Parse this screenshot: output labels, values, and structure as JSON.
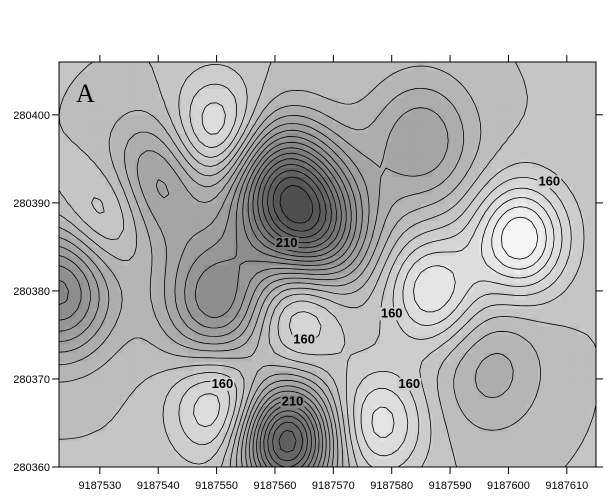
{
  "chart_data": {
    "type": "contour",
    "panel_label": "A",
    "title": "",
    "xlabel": "",
    "ylabel": "",
    "xlim": [
      9187523,
      9187615
    ],
    "ylim": [
      280360,
      280406
    ],
    "x_ticks": [
      9187530,
      9187540,
      9187550,
      9187560,
      9187570,
      9187580,
      9187590,
      9187600,
      9187610
    ],
    "y_ticks": [
      280360,
      280370,
      280380,
      280390,
      280400
    ],
    "grid": false,
    "fill": "grayscale, darker = higher value",
    "contour_labels": [
      {
        "text": "160",
        "x": 9187607,
        "y": 280392
      },
      {
        "text": "210",
        "x": 9187562,
        "y": 280385
      },
      {
        "text": "160",
        "x": 9187580,
        "y": 280377
      },
      {
        "text": "160",
        "x": 9187565,
        "y": 280374
      },
      {
        "text": "160",
        "x": 9187551,
        "y": 280369
      },
      {
        "text": "210",
        "x": 9187563,
        "y": 280367
      },
      {
        "text": "160",
        "x": 9187583,
        "y": 280369
      }
    ],
    "features": [
      {
        "kind": "high",
        "x": 9187561,
        "y": 280392,
        "amp": 1.0
      },
      {
        "kind": "high",
        "x": 9187567,
        "y": 280387,
        "amp": 0.9
      },
      {
        "kind": "high",
        "x": 9187539,
        "y": 280392,
        "amp": 0.55
      },
      {
        "kind": "high",
        "x": 9187550,
        "y": 280379,
        "amp": 0.7
      },
      {
        "kind": "high",
        "x": 9187523,
        "y": 280380,
        "amp": 0.75
      },
      {
        "kind": "high",
        "x": 9187562,
        "y": 280363,
        "amp": 1.3
      },
      {
        "kind": "high",
        "x": 9187585,
        "y": 280397,
        "amp": 0.4
      },
      {
        "kind": "high",
        "x": 9187597,
        "y": 280371,
        "amp": 0.25
      },
      {
        "kind": "low",
        "x": 9187550,
        "y": 280398,
        "amp": 0.5
      },
      {
        "kind": "low",
        "x": 9187532,
        "y": 280389,
        "amp": 0.4
      },
      {
        "kind": "low",
        "x": 9187564,
        "y": 280378,
        "amp": 0.45
      },
      {
        "kind": "low",
        "x": 9187602,
        "y": 280386,
        "amp": 0.7
      },
      {
        "kind": "low",
        "x": 9187587,
        "y": 280380,
        "amp": 0.5
      },
      {
        "kind": "low",
        "x": 9187550,
        "y": 280367,
        "amp": 0.45
      },
      {
        "kind": "low",
        "x": 9187578,
        "y": 280365,
        "amp": 0.45
      }
    ]
  }
}
